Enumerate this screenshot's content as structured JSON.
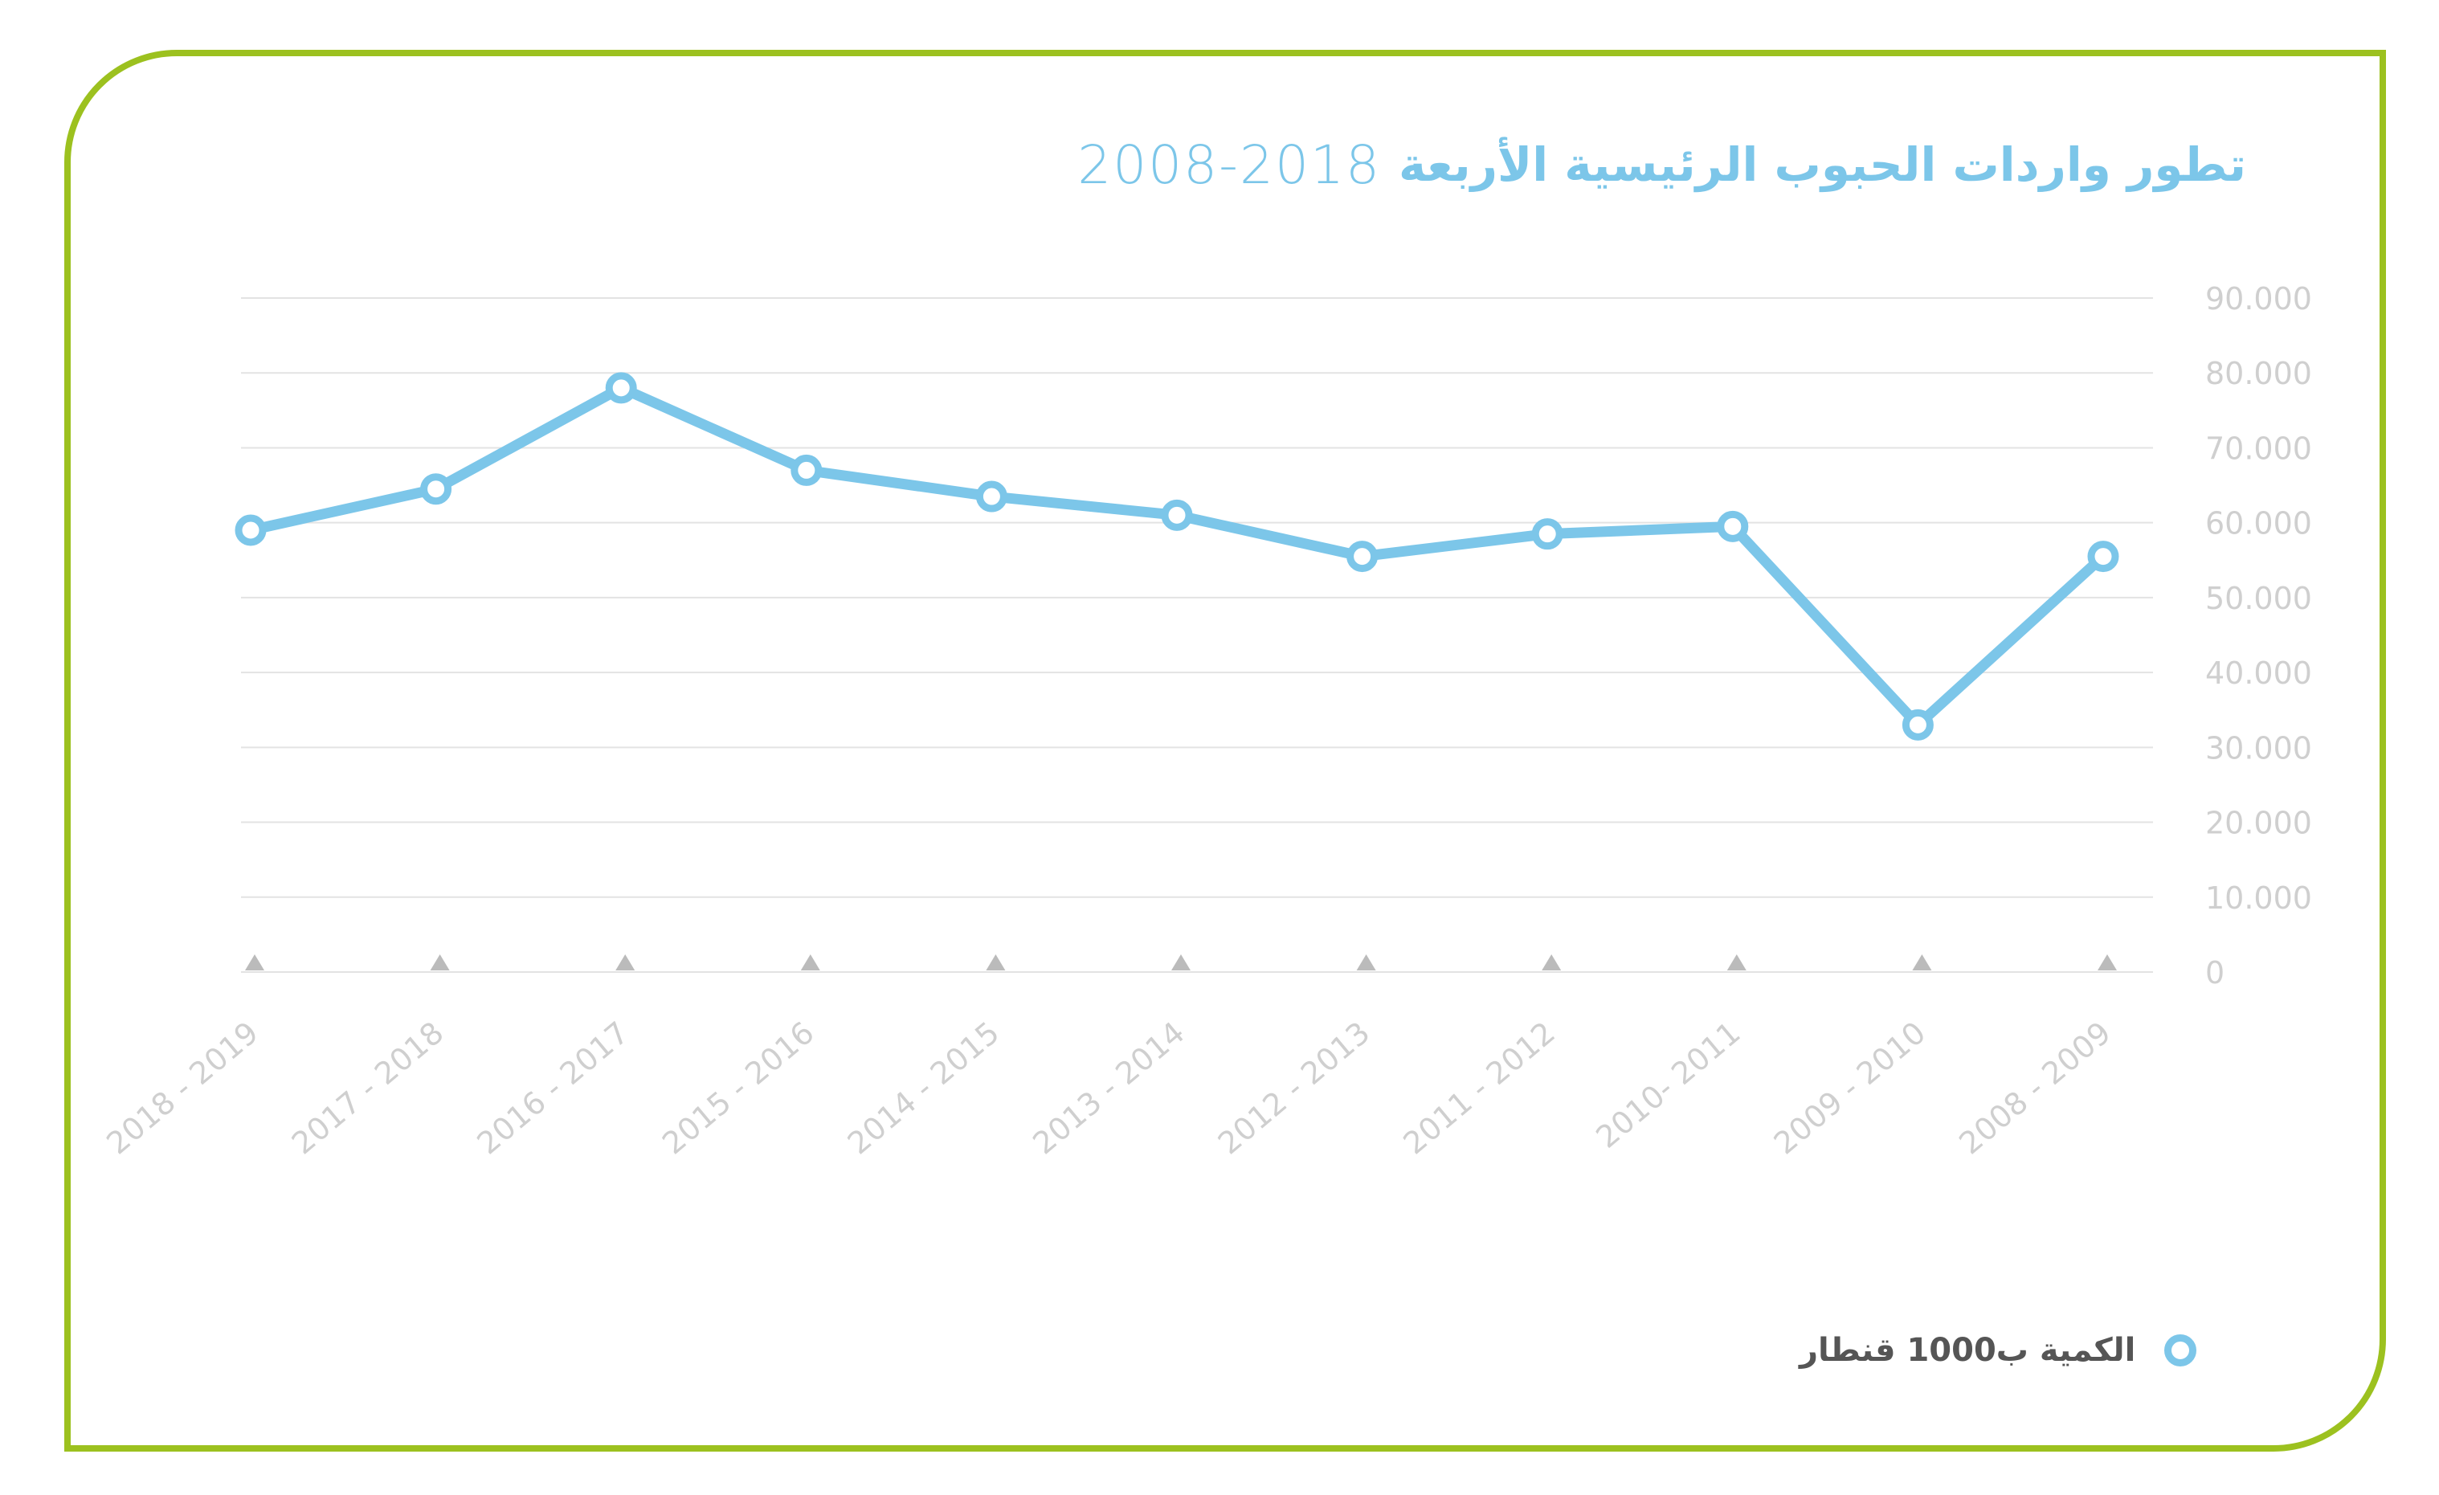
{
  "chart_data": {
    "type": "line",
    "title": "تطور واردات الحبوب الرئيسية الأربعة",
    "title_years": "2008-2018",
    "categories": [
      "2018 - 2019",
      "2017 - 2018",
      "2016 - 2017",
      "2015 - 2016",
      "2014 - 2015",
      "2013 - 2014",
      "2012 - 2013",
      "2011 - 2012",
      "2010- 2011",
      "2009 - 2010",
      "2008 - 2009"
    ],
    "series": [
      {
        "name": "الكمية ب1000 قنطار",
        "values": [
          59000,
          64500,
          78000,
          67000,
          63500,
          61000,
          55500,
          58500,
          59500,
          33000,
          55500
        ]
      }
    ],
    "ylim": [
      0,
      90000
    ],
    "yticks": [
      "0",
      "10.000",
      "20.000",
      "30.000",
      "40.000",
      "50.000",
      "60.000",
      "70.000",
      "80.000",
      "90.000"
    ],
    "grid": true,
    "legend_position": "bottom-right",
    "colors": {
      "line": "#7cc6e9",
      "frame": "#9cc11f",
      "grid": "#e3e3e3",
      "tick_text": "#cfcfcf",
      "marker": "#bbbbbb"
    }
  },
  "legend": {
    "label": "الكمية ب1000 قنطار"
  }
}
